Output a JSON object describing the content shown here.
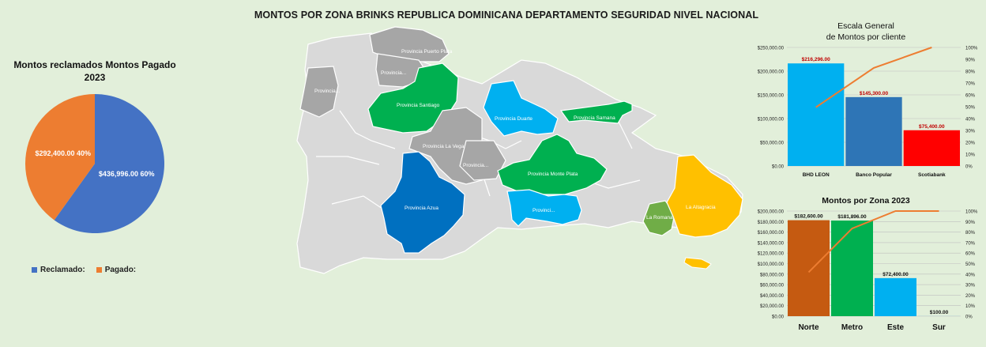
{
  "main_title": "MONTOS POR ZONA BRINKS REPUBLICA DOMINICANA DEPARTAMENTO SEGURIDAD NIVEL NACIONAL",
  "colors": {
    "background": "#e2efda",
    "reclamado": "#4472c4",
    "pagado": "#ed7d31",
    "map_gray": "#a6a6a6",
    "map_light": "#d9d9d9",
    "map_green": "#00b050",
    "map_light_blue": "#00b0f0",
    "map_blue": "#0070c0",
    "map_olive": "#70ad47",
    "map_yellow": "#ffc000"
  },
  "map": {
    "labels": {
      "puerto_plata": "Provincia Puerto Plata",
      "provincia_1": "Provincia...",
      "provincia_2": "Provincia...",
      "santiago": "Provincia Santiago",
      "la_vega": "Provincia La Vega",
      "provincia_3": "Provincia...",
      "duarte": "Provincia Duarte",
      "samana": "Provincia Samana",
      "monte_plata": "Provincia Monte Plata",
      "azua": "Provincia Azua",
      "provincia_4": "Provinci...",
      "la_romana": "La Romana",
      "la_altagracia": "La Altagracia"
    }
  },
  "chart_data": [
    {
      "type": "pie",
      "title": "Montos reclamados Montos Pagado 2023",
      "title_line1": "Montos reclamados Montos Pagado",
      "title_line2": "2023",
      "slices": [
        {
          "name": "Reclamado:",
          "value": 436996.0,
          "percent": 60,
          "label": "$436,996.00 60%"
        },
        {
          "name": "Pagado:",
          "value": 292400.0,
          "percent": 40,
          "label": "$292,400.00 40%"
        }
      ],
      "legend": [
        "Reclamado:",
        "Pagado:"
      ],
      "legend_position": "bottom"
    },
    {
      "type": "bar",
      "subtype": "pareto",
      "title": "Escala General de Montos por cliente",
      "title_line1": "Escala General",
      "title_line2": "de Montos por cliente",
      "categories": [
        "BHD LEON",
        "Banco Popular",
        "Scotiabank"
      ],
      "values": [
        216296,
        145300,
        75400
      ],
      "value_labels": [
        "$216,296.00",
        "$145,300.00",
        "$75,400.00"
      ],
      "bar_colors": [
        "#00b0f0",
        "#2e75b6",
        "#ff0000"
      ],
      "cumulative_percent": [
        49.5,
        82.7,
        100
      ],
      "ylim": [
        0,
        250000
      ],
      "y_ticks": [
        "$0.00",
        "$50,000.00",
        "$100,000.00",
        "$150,000.00",
        "$200,000.00",
        "$250,000.00"
      ],
      "y2_ticks": [
        "0%",
        "10%",
        "20%",
        "30%",
        "40%",
        "50%",
        "60%",
        "70%",
        "80%",
        "90%",
        "100%"
      ],
      "line_color": "#ed7d31",
      "grid": true
    },
    {
      "type": "bar",
      "subtype": "pareto",
      "title": "Montos por Zona 2023",
      "categories": [
        "Norte",
        "Metro",
        "Este",
        "Sur"
      ],
      "values": [
        182600,
        181896,
        72400,
        100
      ],
      "value_labels": [
        "$182,600.00",
        "$181,896.00",
        "$72,400.00",
        "$100.00"
      ],
      "bar_colors": [
        "#c55a11",
        "#00b050",
        "#00b0f0",
        "#00b0f0"
      ],
      "cumulative_percent": [
        41.8,
        83.4,
        100,
        100
      ],
      "ylim": [
        0,
        200000
      ],
      "y_ticks": [
        "$0.00",
        "$20,000.00",
        "$40,000.00",
        "$60,000.00",
        "$80,000.00",
        "$100,000.00",
        "$120,000.00",
        "$140,000.00",
        "$160,000.00",
        "$180,000.00",
        "$200,000.00"
      ],
      "y2_ticks": [
        "0%",
        "10%",
        "20%",
        "30%",
        "40%",
        "50%",
        "60%",
        "70%",
        "80%",
        "90%",
        "100%"
      ],
      "line_color": "#ed7d31",
      "grid": true
    }
  ]
}
